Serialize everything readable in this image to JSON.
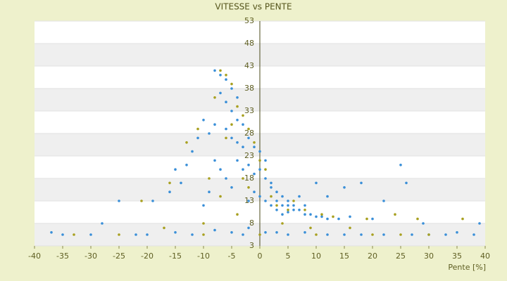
{
  "chart_data": {
    "type": "scatter",
    "title": "VITESSE vs PENTE",
    "x_label": "Pente [%]",
    "xlim": [
      -40,
      40
    ],
    "xticks": [
      -40,
      -35,
      -30,
      -25,
      -20,
      -15,
      -10,
      -5,
      0,
      5,
      10,
      15,
      20,
      25,
      30,
      35,
      40
    ],
    "ylim": [
      3,
      53
    ],
    "yticks": [
      3,
      8,
      13,
      18,
      23,
      28,
      33,
      38,
      43,
      48,
      53
    ],
    "grid": true,
    "series": [
      {
        "color": "#3a8fd8",
        "x": [
          -8,
          -7,
          -6,
          -5,
          -4,
          -7,
          -6,
          -5,
          -4,
          -3,
          -6,
          -5,
          -4,
          -3,
          -2,
          -1,
          0,
          1,
          -8,
          -9,
          -10,
          -11,
          -12,
          -13,
          -15,
          -14,
          -16,
          -19,
          -25,
          -4,
          -3,
          -2,
          -1,
          0,
          1,
          2,
          3,
          2,
          3,
          4,
          4,
          5,
          5,
          6,
          6,
          7,
          8,
          9,
          10,
          11,
          12,
          14,
          16,
          20,
          3,
          4,
          5,
          2,
          1,
          0,
          -1,
          -2,
          -5,
          -6,
          -7,
          -8,
          -9,
          -10,
          7,
          8,
          10,
          12,
          15,
          18,
          22,
          25,
          26,
          29,
          -28,
          -15,
          -8,
          -5,
          -2,
          1,
          3,
          8,
          15,
          22,
          30,
          38,
          -35,
          -30,
          -22,
          -12,
          -3,
          5,
          12,
          35,
          39,
          -37,
          -20,
          18,
          27,
          33
        ],
        "values": [
          42,
          41,
          40,
          38,
          36,
          37,
          35,
          33,
          31,
          30,
          29,
          27,
          26,
          25,
          27,
          25,
          24,
          22,
          30,
          28,
          31,
          27,
          24,
          21,
          20,
          17,
          15,
          13,
          13,
          22,
          20,
          21,
          19,
          20,
          18,
          17,
          15,
          16,
          13,
          12,
          14,
          12,
          13,
          11,
          12,
          11,
          10,
          10,
          9.5,
          9.5,
          9,
          9,
          9.5,
          9,
          11,
          10,
          10.5,
          12,
          13,
          14,
          15,
          13,
          16,
          18,
          20,
          22,
          15,
          12,
          14,
          12,
          17,
          14,
          16,
          17,
          13,
          21,
          17,
          8,
          8,
          6,
          6.5,
          6,
          7,
          6,
          6,
          6,
          5.5,
          5.5,
          5.5,
          5.5,
          5.5,
          5.5,
          5.5,
          5.5,
          5.5,
          5.5,
          5.5,
          6,
          8,
          6,
          5.5,
          5.5,
          5.5,
          5.5
        ]
      },
      {
        "color": "#a8a020",
        "x": [
          -7,
          -6,
          -5,
          -8,
          -4,
          -3,
          -5,
          -6,
          -2,
          -1,
          0,
          1,
          -11,
          -13,
          -16,
          -21,
          -3,
          -2,
          2,
          3,
          5,
          6,
          8,
          11,
          13,
          19,
          24,
          28,
          -9,
          -7,
          -4,
          4,
          9,
          -10,
          -25,
          -10,
          0,
          10,
          20,
          30,
          36,
          -33,
          -17,
          16,
          25
        ],
        "values": [
          42,
          41,
          39,
          36,
          34,
          32,
          30,
          27,
          29,
          26,
          22,
          20,
          29,
          26,
          17,
          13,
          18,
          16,
          14,
          12,
          11,
          13,
          11,
          10,
          9.5,
          9,
          10,
          9,
          18,
          14,
          10,
          8,
          7,
          8,
          5.5,
          5.5,
          5.5,
          5.5,
          5.5,
          5.5,
          9,
          5.5,
          7,
          7,
          5.5
        ]
      }
    ]
  }
}
